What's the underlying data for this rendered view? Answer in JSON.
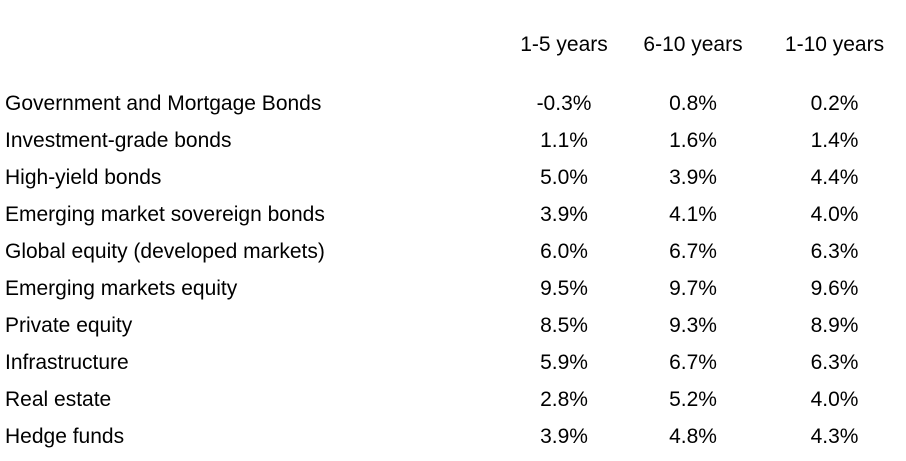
{
  "colors": {
    "background": "#ffffff",
    "text": "#000000"
  },
  "chart_data": {
    "type": "table",
    "title": "",
    "columns": [
      "1-5 years",
      "6-10 years",
      "1-10 years"
    ],
    "row_label_header": "",
    "unit": "%",
    "rows": [
      {
        "label": "Government and Mortgage Bonds",
        "values": [
          "-0.3%",
          "0.8%",
          "0.2%"
        ],
        "values_numeric": [
          -0.3,
          0.8,
          0.2
        ]
      },
      {
        "label": "Investment-grade bonds",
        "values": [
          "1.1%",
          "1.6%",
          "1.4%"
        ],
        "values_numeric": [
          1.1,
          1.6,
          1.4
        ]
      },
      {
        "label": "High-yield bonds",
        "values": [
          "5.0%",
          "3.9%",
          "4.4%"
        ],
        "values_numeric": [
          5.0,
          3.9,
          4.4
        ]
      },
      {
        "label": "Emerging market sovereign bonds",
        "values": [
          "3.9%",
          "4.1%",
          "4.0%"
        ],
        "values_numeric": [
          3.9,
          4.1,
          4.0
        ]
      },
      {
        "label": "Global equity (developed markets)",
        "values": [
          "6.0%",
          "6.7%",
          "6.3%"
        ],
        "values_numeric": [
          6.0,
          6.7,
          6.3
        ]
      },
      {
        "label": "Emerging markets equity",
        "values": [
          "9.5%",
          "9.7%",
          "9.6%"
        ],
        "values_numeric": [
          9.5,
          9.7,
          9.6
        ]
      },
      {
        "label": "Private equity",
        "values": [
          "8.5%",
          "9.3%",
          "8.9%"
        ],
        "values_numeric": [
          8.5,
          9.3,
          8.9
        ]
      },
      {
        "label": "Infrastructure",
        "values": [
          "5.9%",
          "6.7%",
          "6.3%"
        ],
        "values_numeric": [
          5.9,
          6.7,
          6.3
        ]
      },
      {
        "label": "Real estate",
        "values": [
          "2.8%",
          "5.2%",
          "4.0%"
        ],
        "values_numeric": [
          2.8,
          5.2,
          4.0
        ]
      },
      {
        "label": "Hedge funds",
        "values": [
          "3.9%",
          "4.8%",
          "4.3%"
        ],
        "values_numeric": [
          3.9,
          4.8,
          4.3
        ]
      }
    ]
  }
}
